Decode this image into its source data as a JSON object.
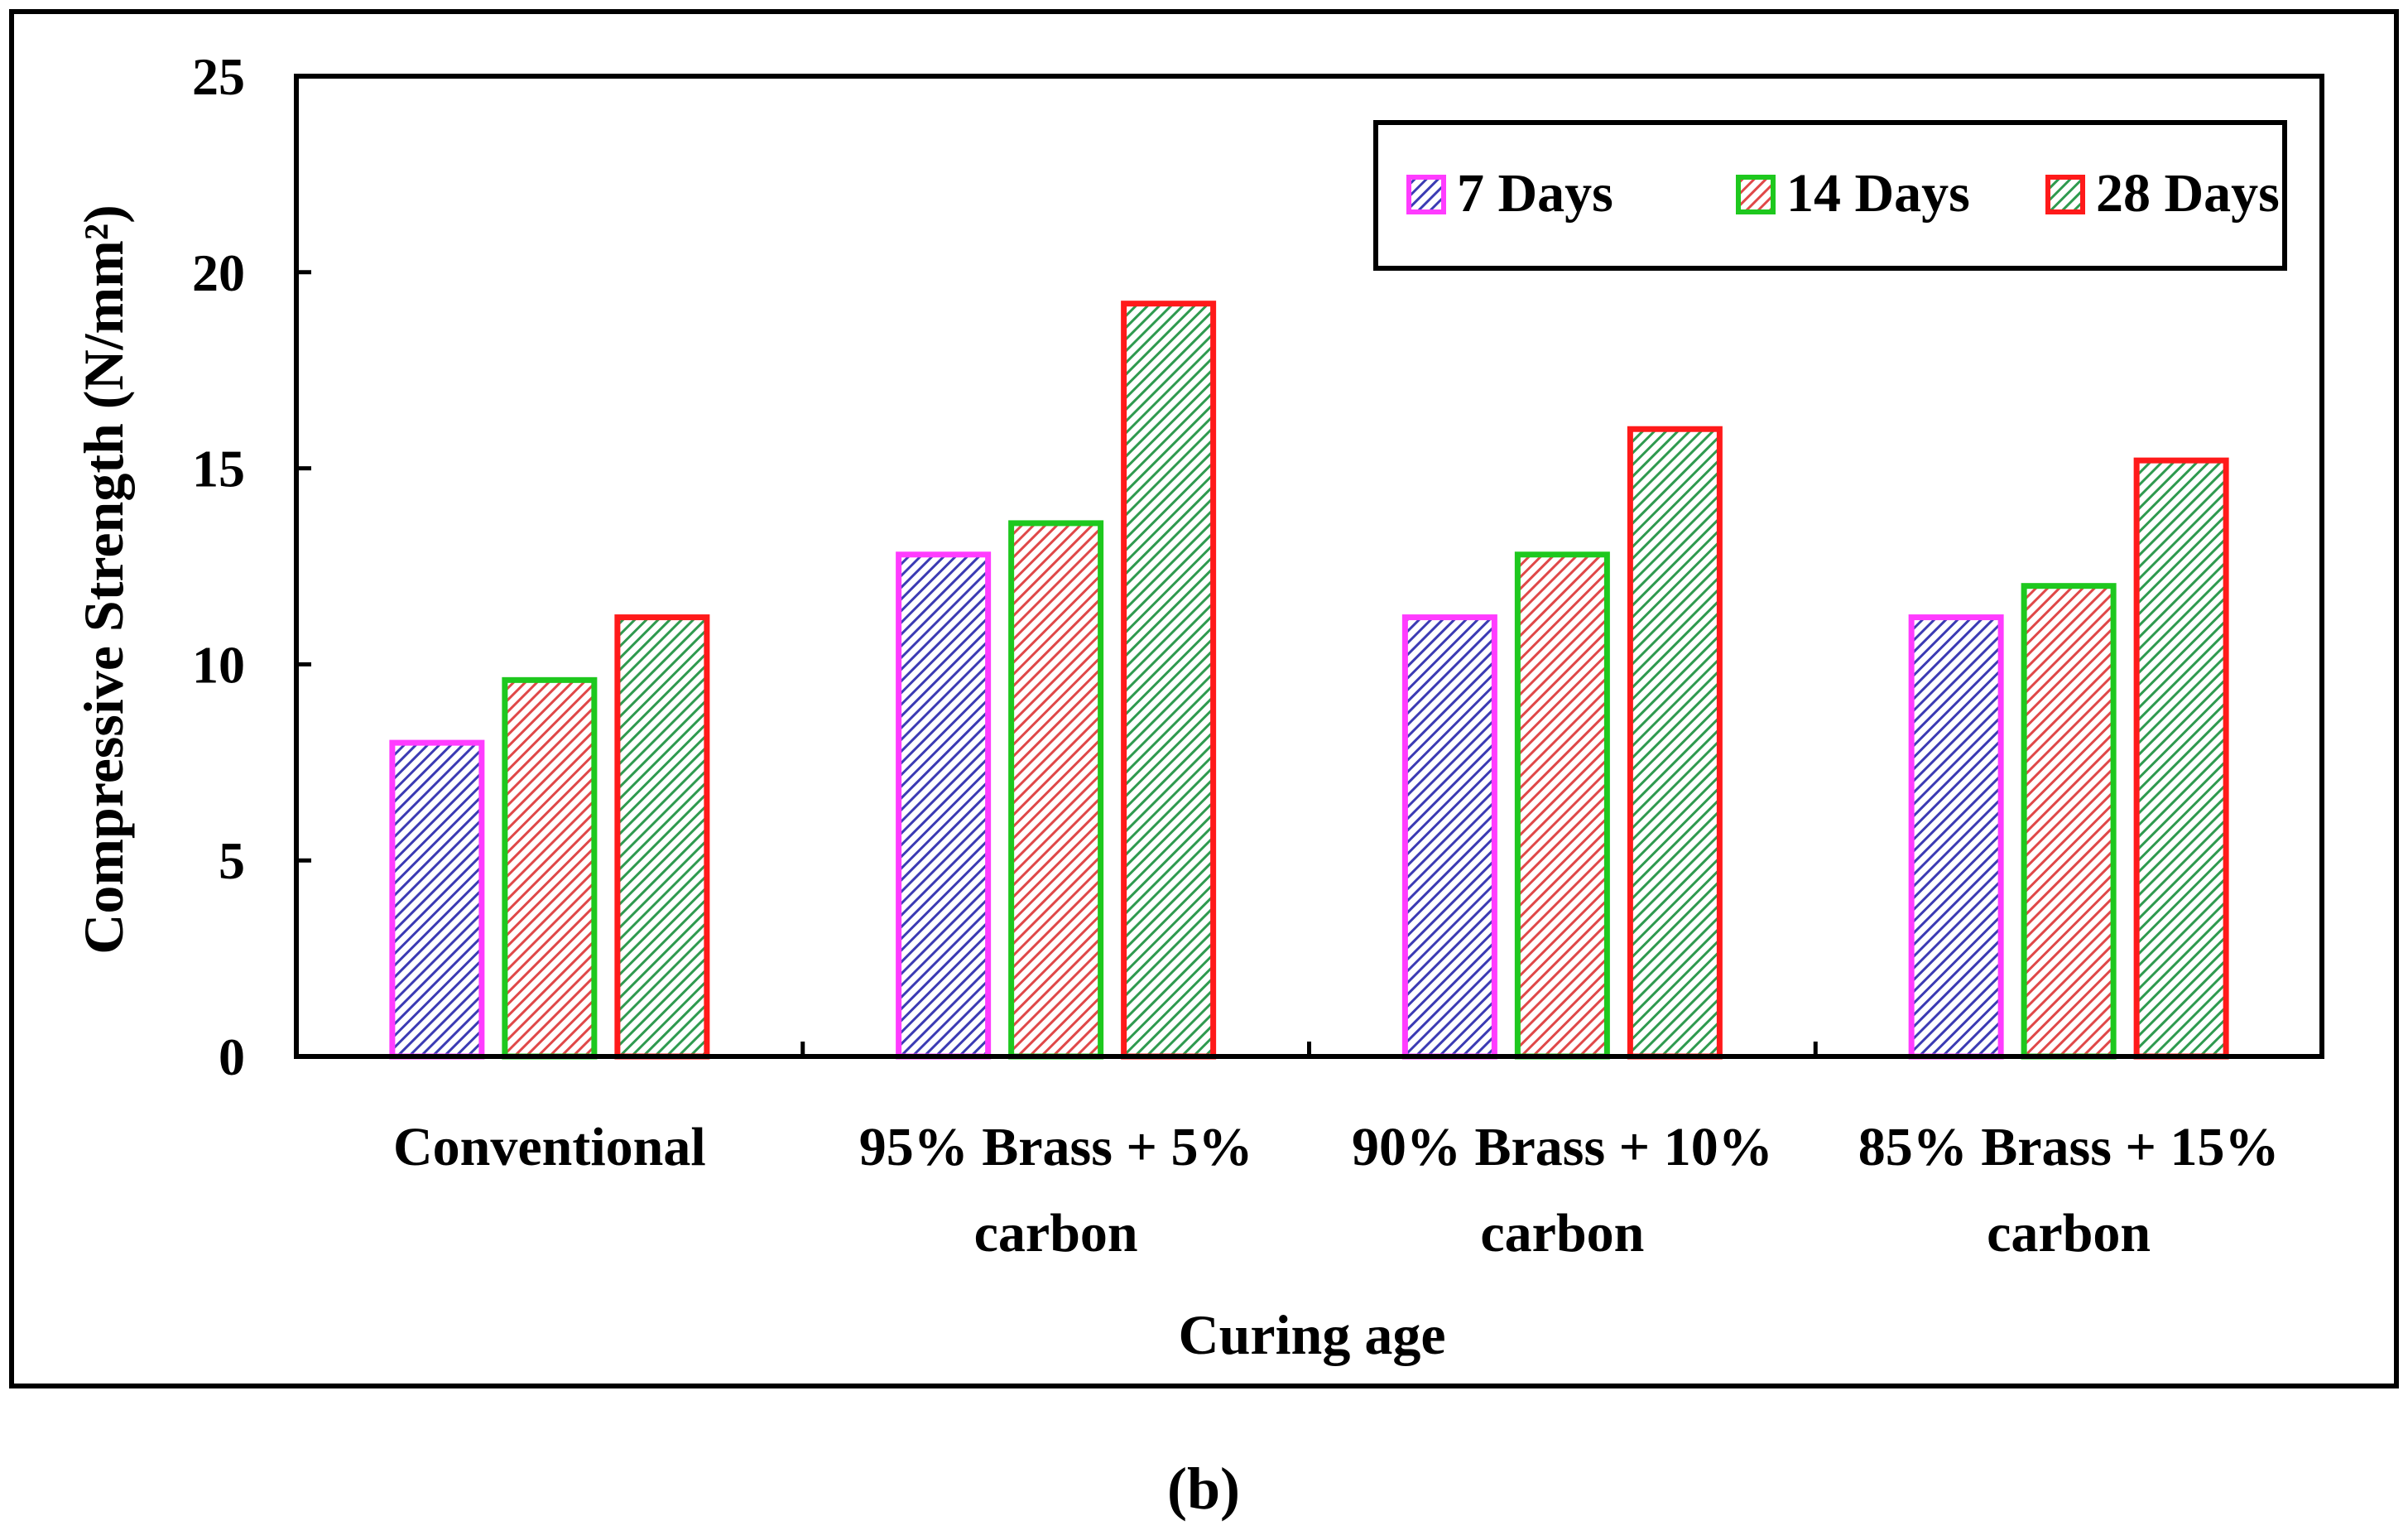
{
  "chart_data": {
    "type": "bar",
    "title": "",
    "xlabel": "Curing age",
    "ylabel": "Compressive Strength (N/mm²)",
    "ylim": [
      0,
      25
    ],
    "yticks": [
      0,
      5,
      10,
      15,
      20,
      25
    ],
    "categories": [
      [
        "Conventional"
      ],
      [
        "95% Brass + 5%",
        "carbon"
      ],
      [
        "90% Brass + 10%",
        "carbon"
      ],
      [
        "85% Brass + 15%",
        "carbon"
      ]
    ],
    "series": [
      {
        "name": "7 Days",
        "values": [
          8.0,
          12.8,
          11.2,
          11.2
        ],
        "fill": "#3b3bb4",
        "stroke": "#ff3cff"
      },
      {
        "name": "14 Days",
        "values": [
          9.6,
          13.6,
          12.8,
          12.0
        ],
        "fill": "#e04848",
        "stroke": "#1ec81e"
      },
      {
        "name": "28 Days",
        "values": [
          11.2,
          19.2,
          16.0,
          15.2
        ],
        "fill": "#2f9a4f",
        "stroke": "#ff1a1a"
      }
    ],
    "legend": "top-right",
    "grid": false
  },
  "caption": "(b)"
}
